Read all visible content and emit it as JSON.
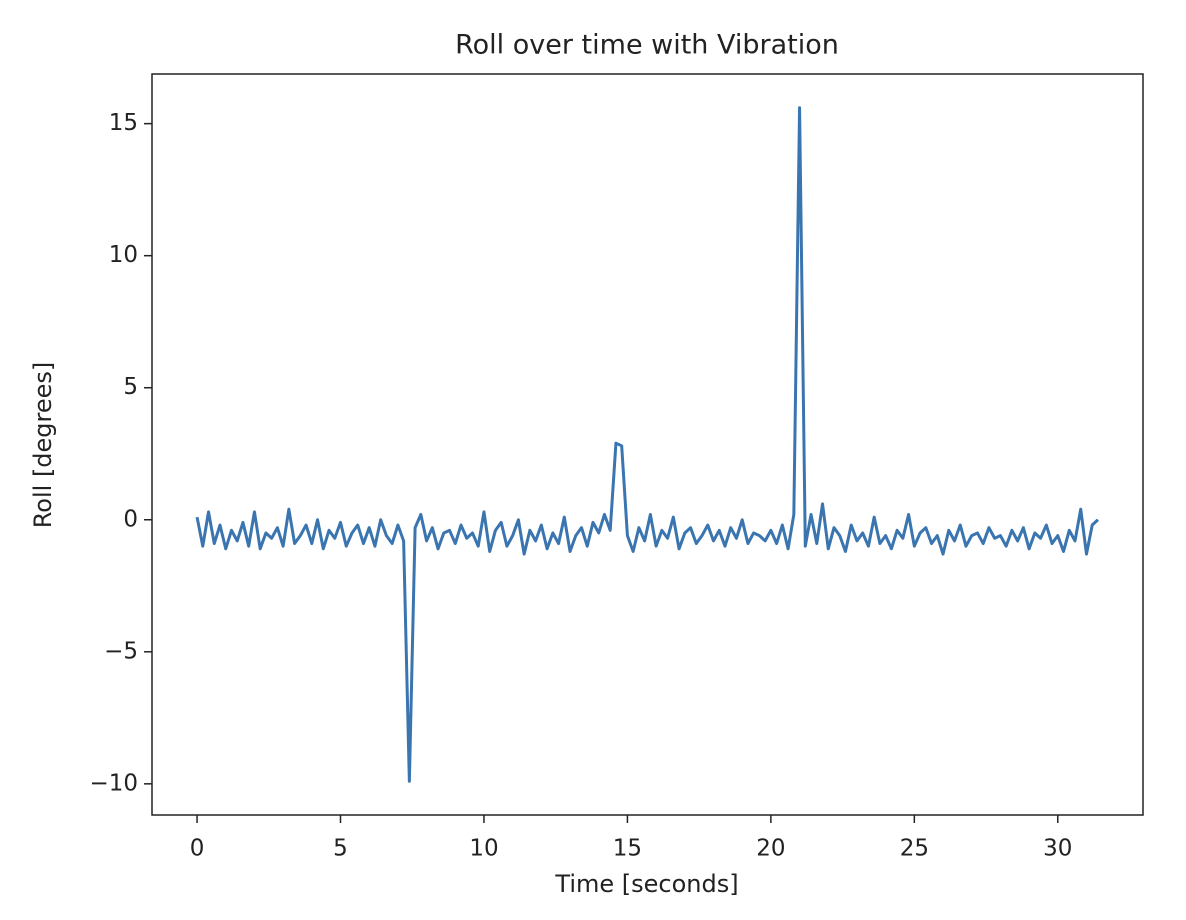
{
  "chart_data": {
    "type": "line",
    "title": "Roll over time with Vibration",
    "x_label": "Time [seconds]",
    "y_label": "Roll [degrees]",
    "x": [
      0,
      0.2,
      0.4,
      0.6,
      0.8,
      1,
      1.2,
      1.4,
      1.6,
      1.8,
      2,
      2.2,
      2.4,
      2.6,
      2.8,
      3,
      3.2,
      3.4,
      3.6,
      3.8,
      4,
      4.2,
      4.4,
      4.6,
      4.8,
      5,
      5.2,
      5.4,
      5.6,
      5.8,
      6,
      6.2,
      6.4,
      6.6,
      6.8,
      7,
      7.2,
      7.4,
      7.6,
      7.8,
      8,
      8.2,
      8.4,
      8.6,
      8.8,
      9,
      9.2,
      9.4,
      9.6,
      9.8,
      10,
      10.2,
      10.4,
      10.6,
      10.8,
      11,
      11.2,
      11.4,
      11.6,
      11.8,
      12,
      12.2,
      12.4,
      12.6,
      12.8,
      13,
      13.2,
      13.4,
      13.6,
      13.8,
      14,
      14.2,
      14.4,
      14.6,
      14.8,
      15,
      15.2,
      15.4,
      15.6,
      15.8,
      16,
      16.2,
      16.4,
      16.6,
      16.8,
      17,
      17.2,
      17.4,
      17.6,
      17.8,
      18,
      18.2,
      18.4,
      18.6,
      18.8,
      19,
      19.2,
      19.4,
      19.6,
      19.8,
      20,
      20.2,
      20.4,
      20.6,
      20.8,
      21,
      21.2,
      21.4,
      21.6,
      21.8,
      22,
      22.2,
      22.4,
      22.6,
      22.8,
      23,
      23.2,
      23.4,
      23.6,
      23.8,
      24,
      24.2,
      24.4,
      24.6,
      24.8,
      25,
      25.2,
      25.4,
      25.6,
      25.8,
      26,
      26.2,
      26.4,
      26.6,
      26.8,
      27,
      27.2,
      27.4,
      27.6,
      27.8,
      28,
      28.2,
      28.4,
      28.6,
      28.8,
      29,
      29.2,
      29.4,
      29.6,
      29.8,
      30,
      30.2,
      30.4,
      30.6,
      30.8,
      31,
      31.2,
      31.4
    ],
    "values": [
      0.1,
      -1.0,
      0.3,
      -0.9,
      -0.2,
      -1.1,
      -0.4,
      -0.8,
      -0.1,
      -1.0,
      0.3,
      -1.1,
      -0.5,
      -0.7,
      -0.3,
      -1.0,
      0.4,
      -0.9,
      -0.6,
      -0.2,
      -0.9,
      0.0,
      -1.1,
      -0.4,
      -0.7,
      -0.1,
      -1.0,
      -0.5,
      -0.2,
      -0.9,
      -0.3,
      -1.0,
      0.0,
      -0.6,
      -0.9,
      -0.2,
      -0.8,
      -9.9,
      -0.3,
      0.2,
      -0.8,
      -0.3,
      -1.1,
      -0.5,
      -0.4,
      -0.9,
      -0.2,
      -0.7,
      -0.5,
      -1.0,
      0.3,
      -1.2,
      -0.4,
      -0.1,
      -1.0,
      -0.6,
      0.0,
      -1.3,
      -0.4,
      -0.8,
      -0.2,
      -1.1,
      -0.5,
      -0.9,
      0.1,
      -1.2,
      -0.6,
      -0.3,
      -1.0,
      -0.1,
      -0.5,
      0.2,
      -0.4,
      2.9,
      2.8,
      -0.6,
      -1.2,
      -0.3,
      -0.8,
      0.2,
      -1.0,
      -0.4,
      -0.7,
      0.1,
      -1.1,
      -0.5,
      -0.3,
      -0.9,
      -0.6,
      -0.2,
      -0.8,
      -0.4,
      -1.0,
      -0.3,
      -0.7,
      0.0,
      -0.9,
      -0.5,
      -0.6,
      -0.8,
      -0.4,
      -0.9,
      -0.2,
      -1.1,
      0.2,
      15.6,
      -1.0,
      0.2,
      -0.9,
      0.6,
      -1.1,
      -0.3,
      -0.6,
      -1.2,
      -0.2,
      -0.8,
      -0.5,
      -1.0,
      0.1,
      -0.9,
      -0.6,
      -1.1,
      -0.4,
      -0.7,
      0.2,
      -1.0,
      -0.5,
      -0.3,
      -0.9,
      -0.6,
      -1.3,
      -0.4,
      -0.8,
      -0.2,
      -1.0,
      -0.6,
      -0.5,
      -0.9,
      -0.3,
      -0.7,
      -0.6,
      -1.0,
      -0.4,
      -0.8,
      -0.3,
      -1.1,
      -0.5,
      -0.7,
      -0.2,
      -0.9,
      -0.6,
      -1.2,
      -0.4,
      -0.8,
      0.4,
      -1.3,
      -0.2,
      0.0
    ],
    "color": "#3a75b0",
    "xlim": [
      -1.57,
      32.97
    ],
    "xticks": [
      0,
      5,
      10,
      15,
      20,
      25,
      30
    ],
    "ylim": [
      -11.18,
      16.88
    ],
    "yticks": [
      {
        "value": -10,
        "label": "−10"
      },
      {
        "value": -5,
        "label": "−5"
      },
      0,
      5,
      10,
      15
    ],
    "grid": false
  }
}
